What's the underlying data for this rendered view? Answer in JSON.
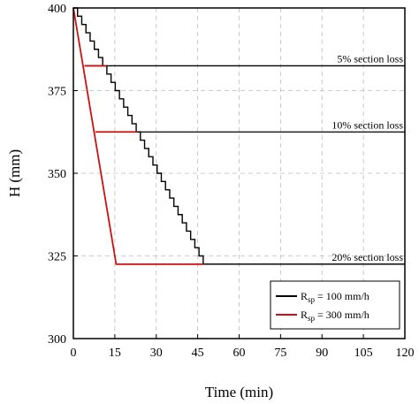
{
  "chart_data": {
    "type": "line",
    "xlabel": "Time (min)",
    "ylabel": "H (mm)",
    "xlim": [
      0,
      120
    ],
    "ylim": [
      300,
      400
    ],
    "xticks": [
      0,
      15,
      30,
      45,
      60,
      75,
      90,
      105,
      120
    ],
    "yticks": [
      300,
      325,
      350,
      375,
      400
    ],
    "grid": "dashed",
    "legend_position": "bottom-right",
    "series": [
      {
        "name": "R_sp = 100 mm/h",
        "legend_main": "R",
        "legend_sub": "sp",
        "legend_rest": " = 100 mm/h",
        "color": "#000000",
        "style": "staircase",
        "x": [
          0,
          47,
          120
        ],
        "y": [
          400,
          322.5,
          322.5
        ]
      },
      {
        "name": "R_sp = 300 mm/h",
        "legend_main": "R",
        "legend_sub": "sp",
        "legend_rest": " = 300 mm/h",
        "color": "#cc1111",
        "style": "line",
        "x": [
          0,
          15.5,
          47
        ],
        "y": [
          400,
          322.5,
          322.5
        ]
      }
    ],
    "reference_lines": [
      {
        "label": "5% section loss",
        "y": 382.5,
        "x_start": 4
      },
      {
        "label": "10% section loss",
        "y": 362.5,
        "x_start": 8
      },
      {
        "label": "20% section loss",
        "y": 322.5,
        "x_start": 15.5
      }
    ],
    "red_segments": [
      {
        "x1": 4,
        "x2": 12,
        "y": 382.5
      },
      {
        "x1": 8,
        "x2": 23,
        "y": 362.5
      }
    ]
  }
}
